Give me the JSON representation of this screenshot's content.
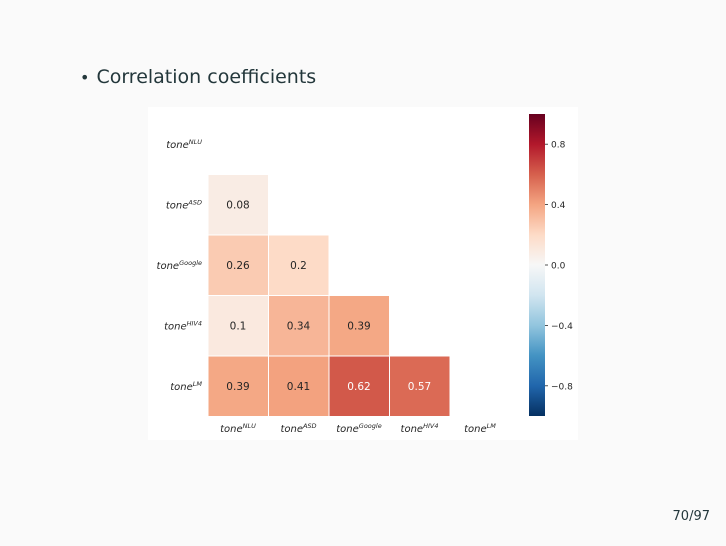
{
  "slide": {
    "bullet_text": "Correlation coefficients",
    "page_number": "70/97"
  },
  "chart_data": {
    "type": "heatmap",
    "title": "",
    "row_labels": [
      "tone^{NLU}",
      "tone^{ASD}",
      "tone^{Google}",
      "tone^{HIV4}",
      "tone^{LM}"
    ],
    "col_labels": [
      "tone^{NLU}",
      "tone^{ASD}",
      "tone^{Google}",
      "tone^{HIV4}",
      "tone^{LM}"
    ],
    "cells": [
      {
        "row": 1,
        "col": 0,
        "value": 0.08,
        "label": "0.08"
      },
      {
        "row": 2,
        "col": 0,
        "value": 0.26,
        "label": "0.26"
      },
      {
        "row": 2,
        "col": 1,
        "value": 0.2,
        "label": "0.2"
      },
      {
        "row": 3,
        "col": 0,
        "value": 0.1,
        "label": "0.1"
      },
      {
        "row": 3,
        "col": 1,
        "value": 0.34,
        "label": "0.34"
      },
      {
        "row": 3,
        "col": 2,
        "value": 0.39,
        "label": "0.39"
      },
      {
        "row": 4,
        "col": 0,
        "value": 0.39,
        "label": "0.39"
      },
      {
        "row": 4,
        "col": 1,
        "value": 0.41,
        "label": "0.41"
      },
      {
        "row": 4,
        "col": 2,
        "value": 0.62,
        "label": "0.62"
      },
      {
        "row": 4,
        "col": 3,
        "value": 0.57,
        "label": "0.57"
      }
    ],
    "colorbar": {
      "min": -1.0,
      "max": 1.0,
      "ticks": [
        0.8,
        0.4,
        0.0,
        -0.4,
        -0.8
      ],
      "tick_labels": [
        "0.8",
        "0.4",
        "0.0",
        "−0.4",
        "−0.8"
      ],
      "colormap": "RdBu_r"
    }
  },
  "colors": {
    "text_dark": "#23373b",
    "cell_text_light": "#ffffff",
    "cell_text_dark": "#262626"
  }
}
